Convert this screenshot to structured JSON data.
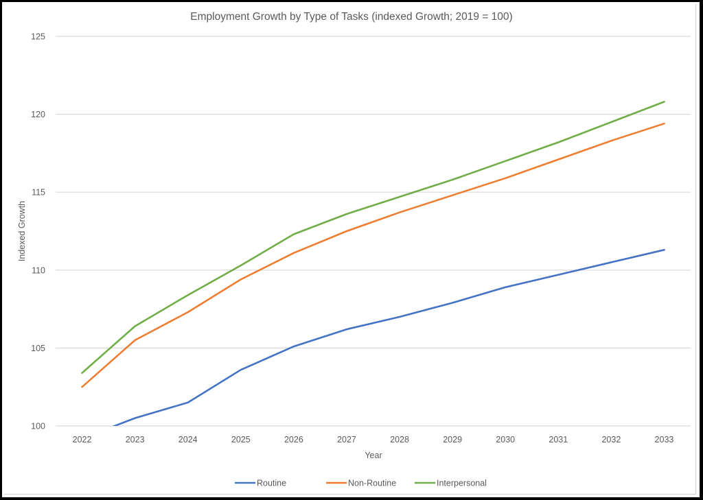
{
  "chart_data": {
    "type": "line",
    "title": "Employment Growth by Type of Tasks (indexed Growth; 2019 = 100)",
    "xlabel": "Year",
    "ylabel": "Indexed Growth",
    "categories": [
      "2022",
      "2023",
      "2024",
      "2025",
      "2026",
      "2027",
      "2028",
      "2029",
      "2030",
      "2031",
      "2032",
      "2033"
    ],
    "ylim": [
      100,
      125
    ],
    "yticks": [
      100,
      105,
      110,
      115,
      120,
      125
    ],
    "grid": true,
    "legend_position": "bottom",
    "series": [
      {
        "name": "Routine",
        "color": "#4472C4",
        "values": [
          99.2,
          100.5,
          101.5,
          103.6,
          105.1,
          106.2,
          107.0,
          107.9,
          108.9,
          109.7,
          110.5,
          111.3
        ]
      },
      {
        "name": "Non-Routine",
        "color": "#ED7D31",
        "values": [
          102.5,
          105.5,
          107.3,
          109.4,
          111.1,
          112.5,
          113.7,
          114.8,
          115.9,
          117.1,
          118.3,
          119.4
        ]
      },
      {
        "name": "Interpersonal",
        "color": "#70AD47",
        "values": [
          103.4,
          106.4,
          108.4,
          110.3,
          112.3,
          113.6,
          114.7,
          115.8,
          117.0,
          118.2,
          119.5,
          120.8
        ]
      }
    ]
  }
}
